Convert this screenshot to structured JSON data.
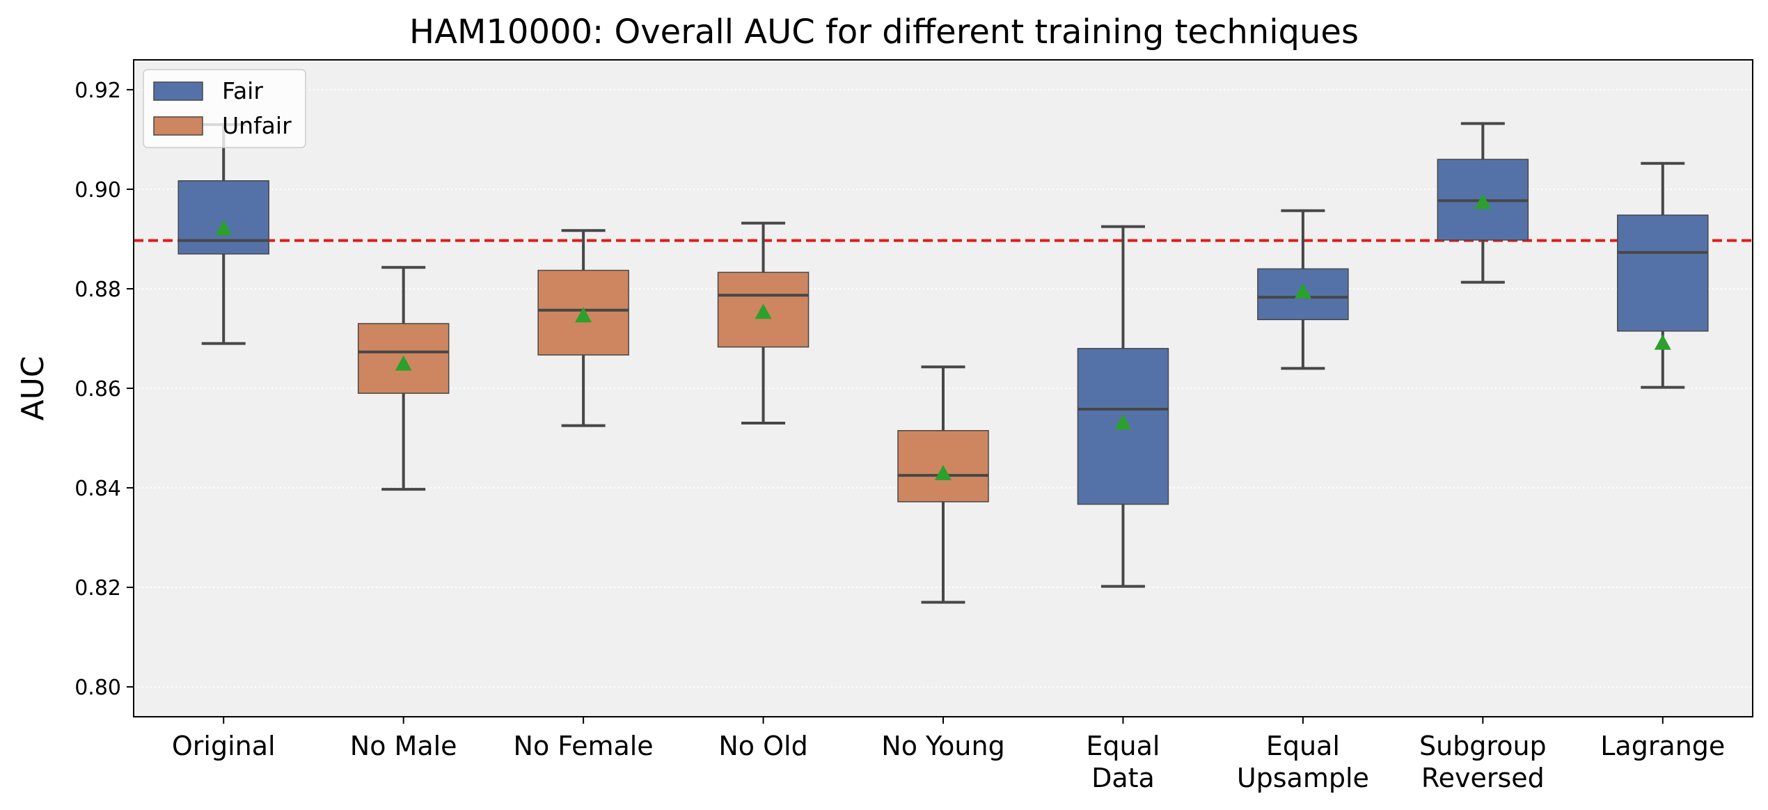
{
  "chart_data": {
    "type": "box",
    "title": "HAM10000: Overall AUC for different training techniques",
    "xlabel": "",
    "ylabel": "AUC",
    "ylim": [
      0.794,
      0.926
    ],
    "yticks": [
      "0.80",
      "0.82",
      "0.84",
      "0.86",
      "0.88",
      "0.90",
      "0.92"
    ],
    "grid": "horizontal dotted",
    "legend_position": "top-left",
    "legend": [
      {
        "label": "Fair",
        "color": "#5572a8"
      },
      {
        "label": "Unfair",
        "color": "#cd8660"
      }
    ],
    "reference_line": {
      "y": 0.8897,
      "color": "#e31a1c",
      "style": "dashed"
    },
    "boxes": [
      {
        "label": [
          "Original"
        ],
        "group": "Fair",
        "whislo": 0.869,
        "q1": 0.887,
        "median": 0.8897,
        "q3": 0.9017,
        "whishi": 0.913,
        "mean": 0.892
      },
      {
        "label": [
          "No Male"
        ],
        "group": "Unfair",
        "whislo": 0.8397,
        "q1": 0.859,
        "median": 0.8673,
        "q3": 0.873,
        "whishi": 0.8843,
        "mean": 0.8648
      },
      {
        "label": [
          "No Female"
        ],
        "group": "Unfair",
        "whislo": 0.8525,
        "q1": 0.8667,
        "median": 0.8757,
        "q3": 0.8837,
        "whishi": 0.8917,
        "mean": 0.8745
      },
      {
        "label": [
          "No Old"
        ],
        "group": "Unfair",
        "whislo": 0.853,
        "q1": 0.8683,
        "median": 0.8787,
        "q3": 0.8833,
        "whishi": 0.8932,
        "mean": 0.8752
      },
      {
        "label": [
          "No Young"
        ],
        "group": "Unfair",
        "whislo": 0.817,
        "q1": 0.8372,
        "median": 0.8425,
        "q3": 0.8515,
        "whishi": 0.8643,
        "mean": 0.8428
      },
      {
        "label": [
          "Equal",
          "Data"
        ],
        "group": "Fair",
        "whislo": 0.8202,
        "q1": 0.8367,
        "median": 0.8558,
        "q3": 0.868,
        "whishi": 0.8925,
        "mean": 0.853
      },
      {
        "label": [
          "Equal",
          "Upsample"
        ],
        "group": "Fair",
        "whislo": 0.864,
        "q1": 0.8738,
        "median": 0.8783,
        "q3": 0.884,
        "whishi": 0.8957,
        "mean": 0.8793
      },
      {
        "label": [
          "Subgroup",
          "Reversed"
        ],
        "group": "Fair",
        "whislo": 0.8813,
        "q1": 0.8898,
        "median": 0.8977,
        "q3": 0.906,
        "whishi": 0.9132,
        "mean": 0.8973
      },
      {
        "label": [
          "Lagrange"
        ],
        "group": "Fair",
        "whislo": 0.8602,
        "q1": 0.8715,
        "median": 0.8873,
        "q3": 0.8948,
        "whishi": 0.9052,
        "mean": 0.869
      }
    ]
  }
}
